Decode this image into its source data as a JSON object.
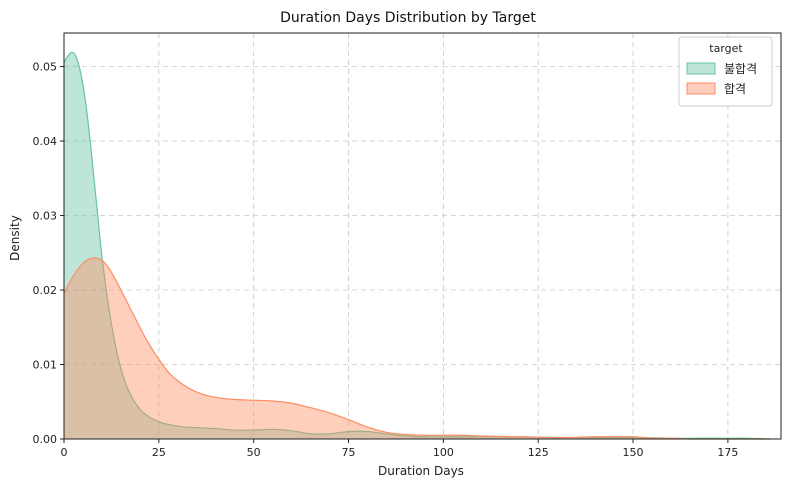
{
  "chart_data": {
    "type": "area",
    "title": "Duration Days Distribution by Target",
    "xlabel": "Duration Days",
    "ylabel": "Density",
    "xlim": [
      0,
      189
    ],
    "ylim": [
      0,
      0.0545
    ],
    "xticks": [
      0,
      25,
      50,
      75,
      100,
      125,
      150,
      175
    ],
    "yticks": [
      0.0,
      0.01,
      0.02,
      0.03,
      0.04,
      0.05
    ],
    "grid": true,
    "legend": {
      "title": "target",
      "placement": "top-right"
    },
    "series": [
      {
        "name": "불합격",
        "fill": "#66c2a5",
        "stroke": "#66c2a5",
        "x": [
          0,
          1,
          2,
          3,
          4,
          5,
          6,
          7,
          8,
          9,
          10,
          12,
          14,
          16,
          18,
          20,
          22,
          25,
          28,
          32,
          36,
          40,
          45,
          50,
          55,
          60,
          65,
          70,
          75,
          80,
          85,
          90,
          95,
          100,
          110,
          120,
          130,
          140,
          150,
          160,
          170,
          175,
          180,
          186
        ],
        "y": [
          0.0505,
          0.0514,
          0.0519,
          0.0515,
          0.05,
          0.0475,
          0.044,
          0.0395,
          0.0345,
          0.0295,
          0.0245,
          0.017,
          0.0115,
          0.0078,
          0.0055,
          0.004,
          0.0031,
          0.0023,
          0.0019,
          0.0016,
          0.0015,
          0.0014,
          0.0012,
          0.0012,
          0.0013,
          0.0011,
          0.0007,
          0.0007,
          0.001,
          0.001,
          0.0007,
          0.0004,
          0.0003,
          0.0003,
          0.0003,
          0.0003,
          0.0002,
          0.0002,
          0.0002,
          0.0001,
          0.0001,
          0.0001,
          0.0001,
          0.0
        ]
      },
      {
        "name": "합격",
        "fill": "#fc8d62",
        "stroke": "#fc8d62",
        "x": [
          0,
          2,
          4,
          6,
          8,
          10,
          12,
          14,
          16,
          18,
          20,
          22,
          25,
          28,
          32,
          36,
          40,
          45,
          50,
          55,
          60,
          65,
          70,
          75,
          80,
          85,
          90,
          95,
          100,
          105,
          110,
          120,
          130,
          140,
          145,
          150,
          155,
          160,
          165,
          170,
          175,
          180,
          186
        ],
        "y": [
          0.0195,
          0.0215,
          0.023,
          0.024,
          0.0243,
          0.024,
          0.0228,
          0.021,
          0.019,
          0.017,
          0.015,
          0.0131,
          0.0107,
          0.0087,
          0.0071,
          0.0061,
          0.0056,
          0.0053,
          0.0052,
          0.0051,
          0.0048,
          0.0042,
          0.0035,
          0.0026,
          0.0016,
          0.0009,
          0.0006,
          0.0005,
          0.0005,
          0.0005,
          0.0004,
          0.0003,
          0.0002,
          0.0003,
          0.0003,
          0.0003,
          0.0001,
          0.0001,
          0.0,
          0.0,
          0.0,
          0.0,
          0.0
        ]
      }
    ]
  }
}
